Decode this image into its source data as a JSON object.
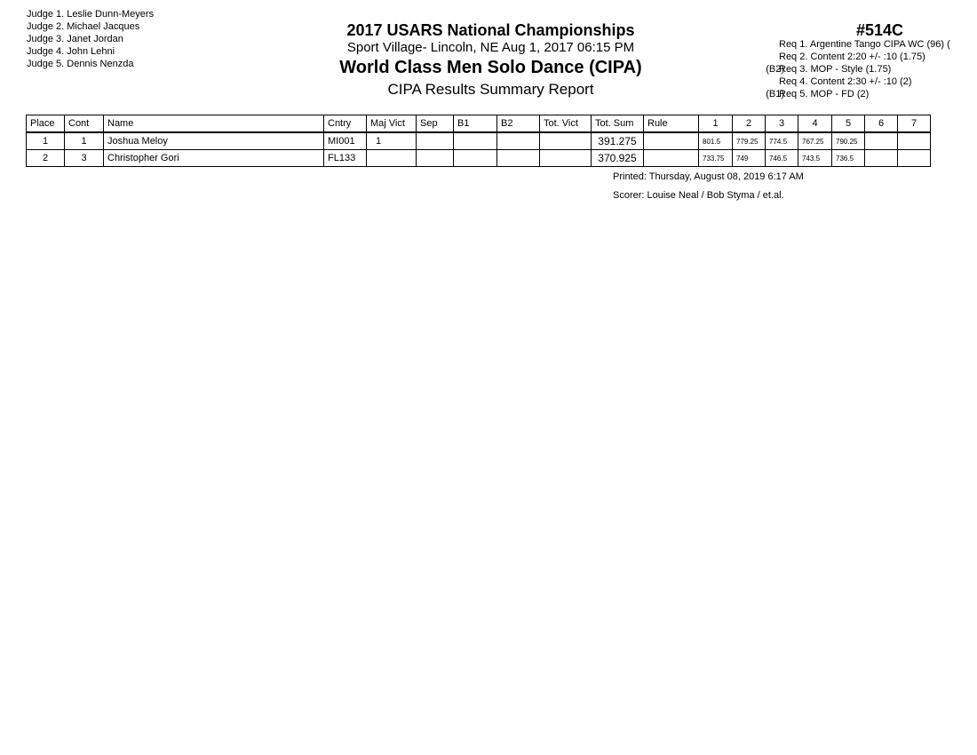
{
  "judges": [
    "Judge  1.  Leslie Dunn-Meyers",
    "Judge  2.  Michael Jacques",
    "Judge  3.  Janet Jordan",
    "Judge  4.  John Lehni",
    "Judge  5.  Dennis Nenzda"
  ],
  "header": {
    "title": "2017 USARS National Championships",
    "venue": "Sport Village- Lincoln, NE  Aug 1, 2017  06:15 PM",
    "event": "World Class Men Solo Dance (CIPA)",
    "report": "CIPA Results Summary Report",
    "event_number": "#514C"
  },
  "requirements": [
    {
      "prefix": "",
      "text": "Req  1.  Argentine Tango CIPA WC (96) ("
    },
    {
      "prefix": "",
      "text": "Req  2.  Content 2:20 +/- :10 (1.75)"
    },
    {
      "prefix": "(B2)",
      "text": "Req  3.  MOP - Style (1.75)"
    },
    {
      "prefix": "",
      "text": "Req  4.  Content 2:30 +/- :10 (2)"
    },
    {
      "prefix": "(B1)",
      "text": "Req  5.  MOP - FD (2)"
    }
  ],
  "table": {
    "columns": [
      "Place",
      "Cont",
      "Name",
      "Cntry",
      "Maj Vict",
      "Sep",
      "B1",
      "B2",
      "Tot. Vict",
      "Tot. Sum",
      "Rule",
      "1",
      "2",
      "3",
      "4",
      "5",
      "6",
      "7"
    ],
    "rows": [
      {
        "place": "1",
        "cont": "1",
        "name": "Joshua Meloy",
        "cntry": "MI001",
        "maj_vict": "1",
        "sep": "",
        "b1": "",
        "b2": "",
        "tot_vict": "",
        "tot_sum": "391.275",
        "rule": "",
        "scores": [
          "801.5",
          "779.25",
          "774.5",
          "767.25",
          "790.25",
          "",
          ""
        ]
      },
      {
        "place": "2",
        "cont": "3",
        "name": "Christopher Gori",
        "cntry": "FL133",
        "maj_vict": "",
        "sep": "",
        "b1": "",
        "b2": "",
        "tot_vict": "",
        "tot_sum": "370.925",
        "rule": "",
        "scores": [
          "733.75",
          "749",
          "746.5",
          "743.5",
          "736.5",
          "",
          ""
        ]
      }
    ]
  },
  "footer": {
    "printed": "Printed:  Thursday, August 08, 2019  6:17 AM",
    "scorer": "Scorer:  Louise Neal / Bob Styma / et.al."
  }
}
